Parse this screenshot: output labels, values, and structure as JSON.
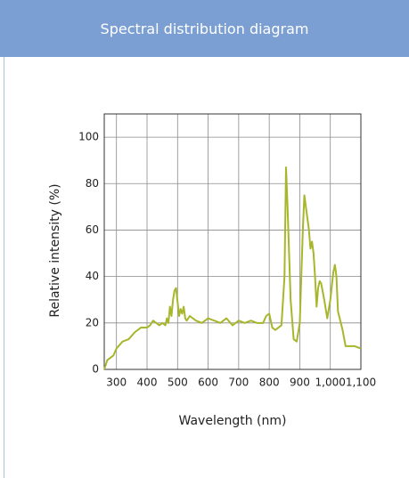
{
  "header": {
    "title": "Spectral distribution diagram"
  },
  "chart_data": {
    "type": "line",
    "xlabel": "Wavelength (nm)",
    "ylabel": "Relative intensity (%)",
    "xlim": [
      260,
      1100
    ],
    "ylim": [
      0,
      110
    ],
    "xticks": [
      300,
      400,
      500,
      600,
      700,
      800,
      900,
      {
        "value": 1000,
        "label": "1,000"
      },
      {
        "value": 1100,
        "label": "1,100"
      }
    ],
    "yticks": [
      0,
      20,
      40,
      60,
      80,
      100
    ],
    "grid": true,
    "series": [
      {
        "color": "#a8b62b",
        "x": [
          260,
          270,
          280,
          290,
          300,
          320,
          340,
          360,
          380,
          400,
          410,
          420,
          430,
          440,
          450,
          460,
          465,
          470,
          475,
          480,
          485,
          490,
          495,
          500,
          505,
          510,
          515,
          520,
          525,
          530,
          540,
          560,
          580,
          600,
          620,
          640,
          660,
          680,
          700,
          720,
          740,
          760,
          780,
          790,
          800,
          810,
          820,
          840,
          850,
          855,
          860,
          870,
          880,
          890,
          900,
          910,
          915,
          920,
          930,
          935,
          940,
          945,
          950,
          955,
          960,
          965,
          970,
          980,
          990,
          1000,
          1010,
          1015,
          1020,
          1025,
          1040,
          1050,
          1060,
          1080,
          1100
        ],
        "values": [
          0,
          4,
          5,
          6,
          9,
          12,
          13,
          16,
          18,
          18,
          19,
          21,
          20,
          19,
          20,
          19,
          22,
          20,
          27,
          23,
          30,
          34,
          35,
          29,
          23,
          26,
          24,
          27,
          22,
          21,
          23,
          21,
          20,
          22,
          21,
          20,
          22,
          19,
          21,
          20,
          21,
          20,
          20,
          23,
          24,
          18,
          17,
          19,
          40,
          87,
          70,
          30,
          13,
          12,
          20,
          60,
          75,
          70,
          60,
          52,
          55,
          50,
          40,
          27,
          35,
          38,
          37,
          30,
          22,
          30,
          42,
          45,
          40,
          25,
          17,
          10,
          10,
          10,
          9
        ]
      }
    ]
  }
}
